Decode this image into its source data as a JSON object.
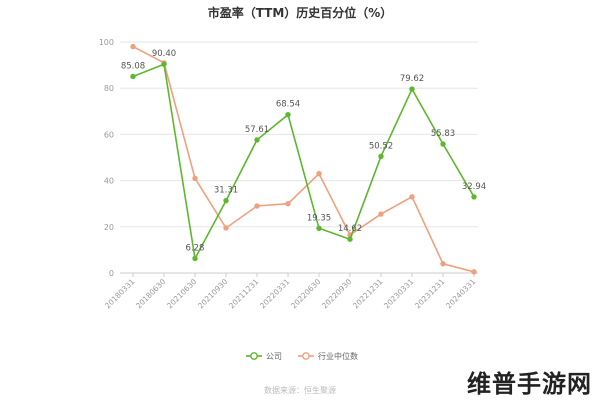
{
  "chart_data": {
    "type": "line",
    "title": "市盈率（TTM）历史百分位（%）",
    "categories": [
      "20180331",
      "20180630",
      "20210630",
      "20210930",
      "20211231",
      "20220331",
      "20220630",
      "20220930",
      "20221231",
      "20230331",
      "20231231",
      "20240331"
    ],
    "ylim": [
      0,
      100
    ],
    "yticks": [
      0,
      20,
      40,
      60,
      80,
      100
    ],
    "grid": true,
    "legend_position": "bottom",
    "series": [
      {
        "name": "公司",
        "color": "#5cb82e",
        "values": [
          85.08,
          90.4,
          6.28,
          31.31,
          57.61,
          68.54,
          19.35,
          14.62,
          50.52,
          79.62,
          55.83,
          32.94
        ],
        "labels": [
          "85.08",
          "90.40",
          "6.28",
          "31.31",
          "57.61",
          "68.54",
          "19.35",
          "14.62",
          "50.52",
          "79.62",
          "55.83",
          "32.94"
        ]
      },
      {
        "name": "行业中位数",
        "color": "#f0a07e",
        "values": [
          98,
          91,
          41,
          19.5,
          29,
          30,
          43,
          16.5,
          25.5,
          33,
          4,
          0.5
        ]
      }
    ]
  },
  "source_text": "数据来源：恒生聚源",
  "watermark": "维普手游网"
}
